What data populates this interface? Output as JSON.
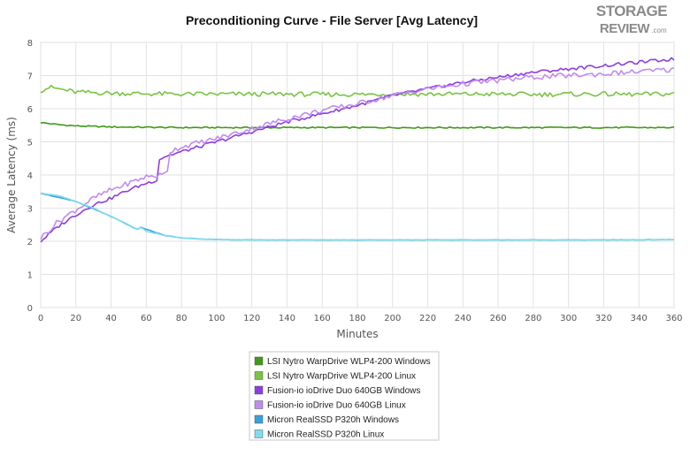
{
  "logo": {
    "line1": "STORAGE",
    "line2": "REVIEW",
    "suffix": ".com"
  },
  "chart_data": {
    "type": "line",
    "title": "Preconditioning Curve - File Server [Avg Latency]",
    "xlabel": "Minutes",
    "ylabel": "Average Latency (ms)",
    "xlim": [
      0,
      360
    ],
    "ylim": [
      0,
      8
    ],
    "xticks": [
      0,
      20,
      40,
      60,
      80,
      100,
      120,
      140,
      160,
      180,
      200,
      220,
      240,
      260,
      280,
      300,
      320,
      340,
      360
    ],
    "yticks": [
      0,
      1,
      2,
      3,
      4,
      5,
      6,
      7,
      8
    ],
    "grid": true,
    "legend_position": "bottom-center",
    "series": [
      {
        "name": "LSI Nytro WarpDrive WLP4-200 Windows",
        "color": "#3f9a16",
        "x": [
          0,
          10,
          20,
          40,
          60,
          80,
          120,
          160,
          200,
          240,
          280,
          320,
          360
        ],
        "y": [
          5.58,
          5.52,
          5.48,
          5.45,
          5.44,
          5.43,
          5.43,
          5.43,
          5.43,
          5.43,
          5.43,
          5.43,
          5.43
        ]
      },
      {
        "name": "LSI Nytro WarpDrive WLP4-200 Linux",
        "color": "#79c443",
        "x": [
          0,
          5,
          10,
          20,
          40,
          60,
          80,
          100,
          120,
          140,
          160,
          180,
          200,
          220,
          240,
          260,
          280,
          300,
          320,
          340,
          360
        ],
        "y": [
          6.55,
          6.65,
          6.6,
          6.5,
          6.47,
          6.45,
          6.44,
          6.44,
          6.44,
          6.44,
          6.43,
          6.43,
          6.44,
          6.44,
          6.44,
          6.44,
          6.43,
          6.44,
          6.44,
          6.43,
          6.45
        ]
      },
      {
        "name": "Fusion-io ioDrive Duo 640GB Windows",
        "color": "#8c3fe0",
        "x": [
          0,
          10,
          20,
          30,
          40,
          50,
          60,
          66,
          67,
          70,
          80,
          100,
          120,
          140,
          160,
          180,
          200,
          220,
          240,
          260,
          280,
          300,
          320,
          340,
          360
        ],
        "y": [
          2.0,
          2.45,
          2.8,
          3.1,
          3.3,
          3.55,
          3.75,
          3.85,
          4.45,
          4.55,
          4.7,
          5.0,
          5.3,
          5.6,
          5.85,
          6.1,
          6.4,
          6.6,
          6.8,
          6.95,
          7.1,
          7.2,
          7.3,
          7.4,
          7.5
        ]
      },
      {
        "name": "Fusion-io ioDrive Duo 640GB Linux",
        "color": "#c08cf0",
        "x": [
          0,
          10,
          20,
          30,
          40,
          50,
          60,
          70,
          72,
          73,
          80,
          100,
          120,
          140,
          160,
          180,
          200,
          220,
          240,
          260,
          280,
          300,
          320,
          340,
          360
        ],
        "y": [
          2.1,
          2.6,
          2.95,
          3.3,
          3.55,
          3.75,
          3.95,
          4.0,
          4.15,
          4.7,
          4.85,
          5.1,
          5.4,
          5.7,
          5.95,
          6.15,
          6.4,
          6.6,
          6.75,
          6.85,
          6.95,
          7.0,
          7.05,
          7.12,
          7.18
        ]
      },
      {
        "name": "Micron RealSSD P320h Windows",
        "color": "#3aa0dc",
        "x": [
          0,
          20,
          40,
          55,
          57,
          70,
          80,
          100,
          120,
          160,
          200,
          240,
          280,
          320,
          360
        ],
        "y": [
          3.45,
          3.2,
          2.75,
          2.35,
          2.42,
          2.18,
          2.1,
          2.05,
          2.04,
          2.04,
          2.04,
          2.04,
          2.04,
          2.04,
          2.05
        ]
      },
      {
        "name": "Micron RealSSD P320h Linux",
        "color": "#80ddef",
        "x": [
          0,
          10,
          20,
          30,
          40,
          50,
          55,
          57,
          60,
          70,
          80,
          90,
          100,
          120,
          160,
          200,
          240,
          280,
          320,
          360
        ],
        "y": [
          3.45,
          3.38,
          3.2,
          3.0,
          2.75,
          2.5,
          2.35,
          2.42,
          2.3,
          2.18,
          2.1,
          2.07,
          2.05,
          2.04,
          2.04,
          2.04,
          2.04,
          2.04,
          2.04,
          2.05
        ]
      }
    ]
  }
}
